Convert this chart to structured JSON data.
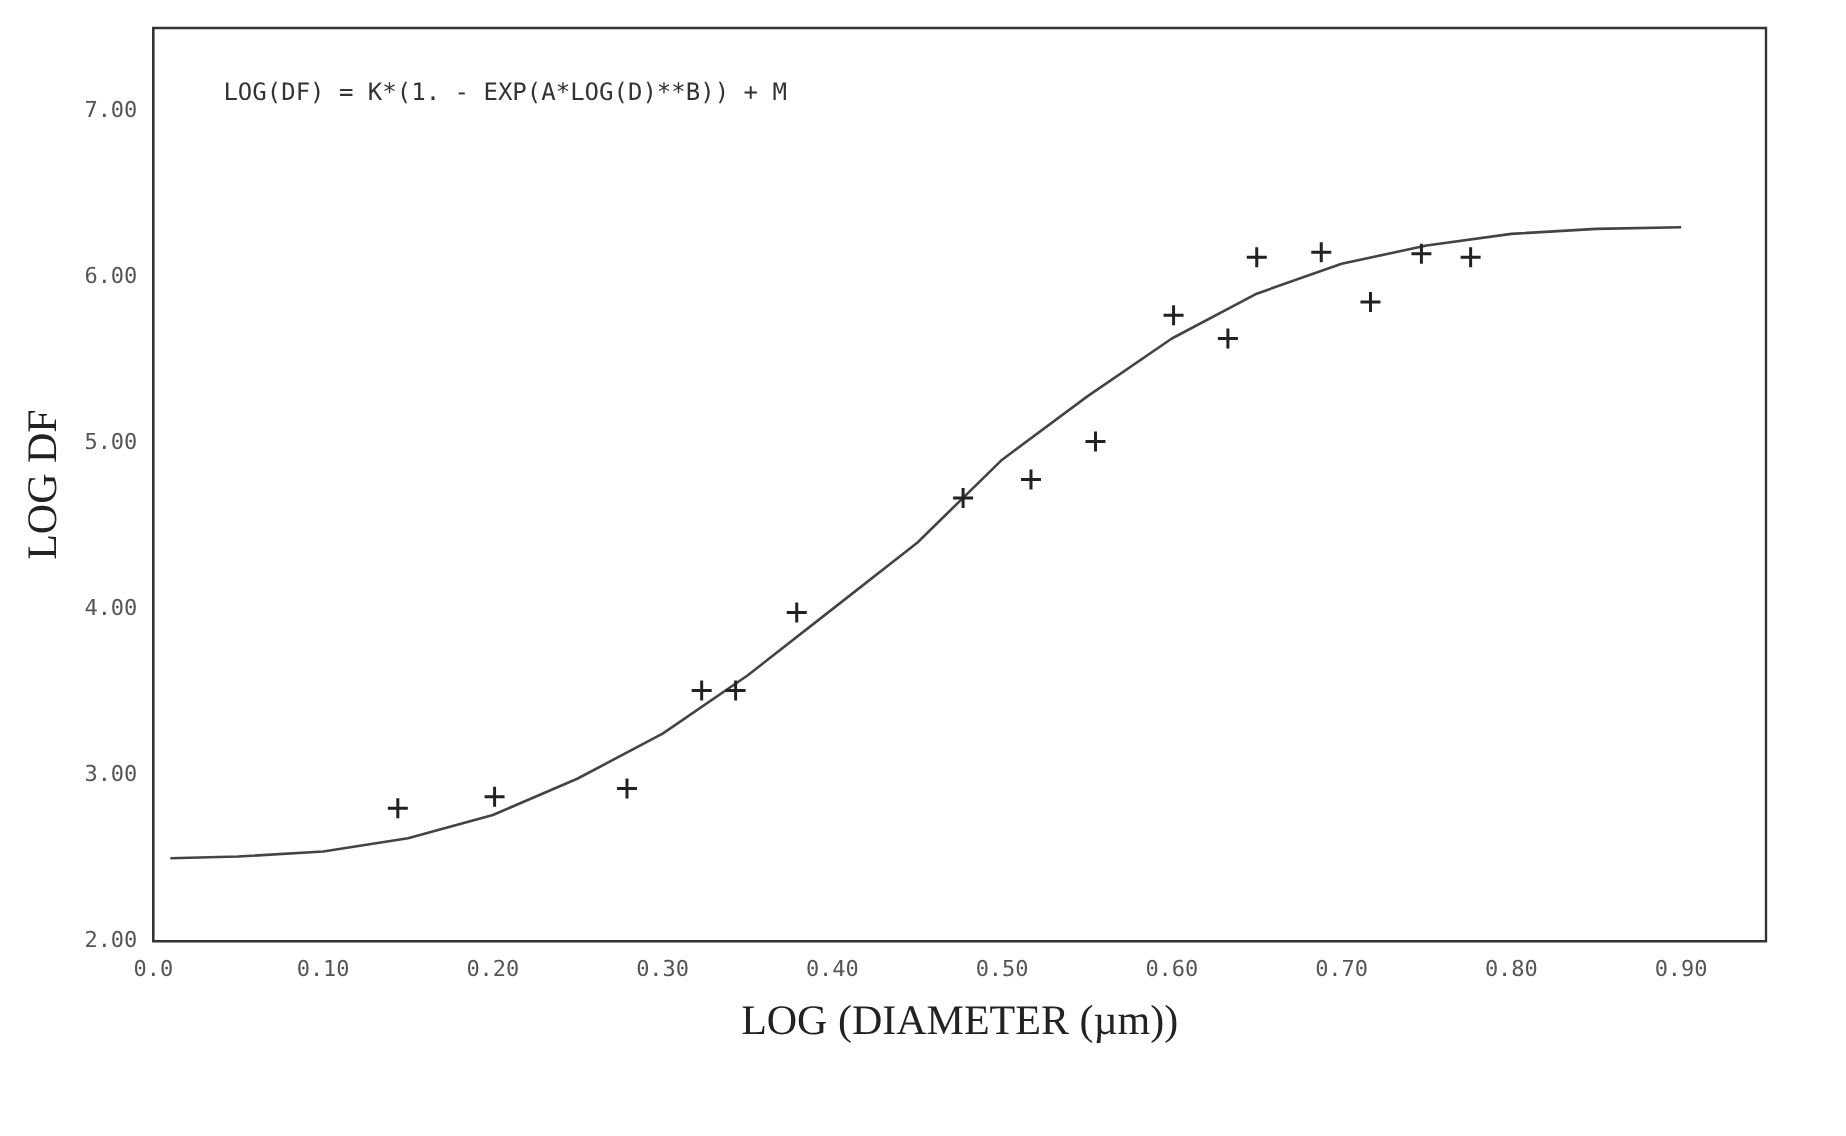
{
  "chart_data": {
    "type": "scatter",
    "xlabel": "LOG (DIAMETER (µm))",
    "ylabel": "LOG DF",
    "annotations": [
      "LOG(DF) = K*(1. - EXP(A*LOG(D)**B)) + M"
    ],
    "xlim": [
      0,
      0.95
    ],
    "ylim": [
      2,
      7.5
    ],
    "xticks": [
      {
        "value": 0,
        "label": "0.0"
      },
      {
        "value": 0.1,
        "label": "0.10"
      },
      {
        "value": 0.2,
        "label": "0.20"
      },
      {
        "value": 0.3,
        "label": "0.30"
      },
      {
        "value": 0.4,
        "label": "0.40"
      },
      {
        "value": 0.5,
        "label": "0.50"
      },
      {
        "value": 0.6,
        "label": "0.60"
      },
      {
        "value": 0.7,
        "label": "0.70"
      },
      {
        "value": 0.8,
        "label": "0.80"
      },
      {
        "value": 0.9,
        "label": "0.90"
      }
    ],
    "yticks": [
      {
        "value": 2,
        "label": "2.00"
      },
      {
        "value": 3,
        "label": "3.00"
      },
      {
        "value": 4,
        "label": "4.00"
      },
      {
        "value": 5,
        "label": "5.00"
      },
      {
        "value": 6,
        "label": "6.00"
      },
      {
        "value": 7,
        "label": "7.00"
      }
    ],
    "grid": false,
    "legend": false,
    "marker": "cross",
    "series": [
      {
        "type": "scatter",
        "color": "#222222",
        "x": [
          0.144,
          0.201,
          0.279,
          0.323,
          0.343,
          0.379,
          0.477,
          0.517,
          0.555,
          0.601,
          0.633,
          0.65,
          0.688,
          0.717,
          0.747,
          0.776
        ],
        "values": [
          2.8,
          2.87,
          2.92,
          3.51,
          3.51,
          3.98,
          4.67,
          4.78,
          5.01,
          5.77,
          5.63,
          6.12,
          6.15,
          5.85,
          6.14,
          6.12
        ]
      },
      {
        "type": "line",
        "color": "#444444",
        "marker": "none",
        "line_style": "solid",
        "x": [
          0.01,
          0.05,
          0.1,
          0.15,
          0.2,
          0.25,
          0.3,
          0.35,
          0.4,
          0.45,
          0.5,
          0.55,
          0.6,
          0.65,
          0.7,
          0.75,
          0.8,
          0.85,
          0.9
        ],
        "values": [
          2.5,
          2.51,
          2.54,
          2.62,
          2.76,
          2.98,
          3.25,
          3.6,
          4.0,
          4.4,
          4.9,
          5.28,
          5.63,
          5.9,
          6.08,
          6.19,
          6.26,
          6.29,
          6.3
        ]
      }
    ]
  }
}
